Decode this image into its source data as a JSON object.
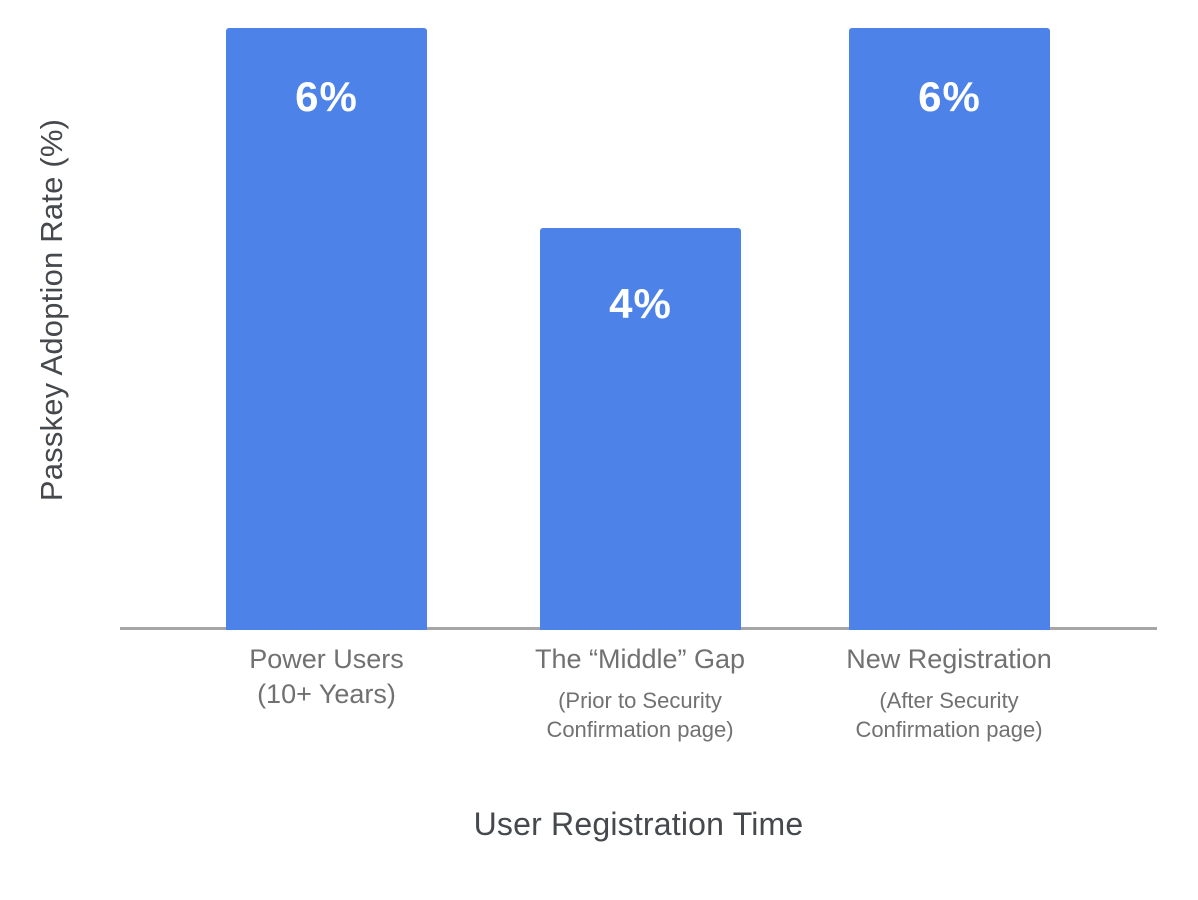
{
  "chart_data": {
    "type": "bar",
    "title": "",
    "xlabel": "User Registration Time",
    "ylabel": "Passkey Adoption Rate (%)",
    "categories": [
      "Power Users (10+ Years)",
      "The “Middle” Gap (Prior to Security Confirmation page)",
      "New Registration (After Security Confirmation page)"
    ],
    "category_display": [
      {
        "main_lines": [
          "Power Users",
          "(10+ Years)"
        ],
        "sub_lines": []
      },
      {
        "main_lines": [
          "The “Middle” Gap"
        ],
        "sub_lines": [
          "(Prior to Security",
          "Confirmation page)"
        ]
      },
      {
        "main_lines": [
          "New Registration"
        ],
        "sub_lines": [
          "(After Security",
          "Confirmation page)"
        ]
      }
    ],
    "values": [
      6,
      4,
      6
    ],
    "bar_labels": [
      "6%",
      "4%",
      "6%"
    ],
    "ylim": [
      0,
      6.3
    ],
    "grid": false,
    "legend": false,
    "colors": {
      "bar": "#4d82e8",
      "bar_label": "#ffffff",
      "axis_line": "#a6a6a6",
      "category_label": "#717171",
      "axis_title": "#45484c"
    }
  }
}
